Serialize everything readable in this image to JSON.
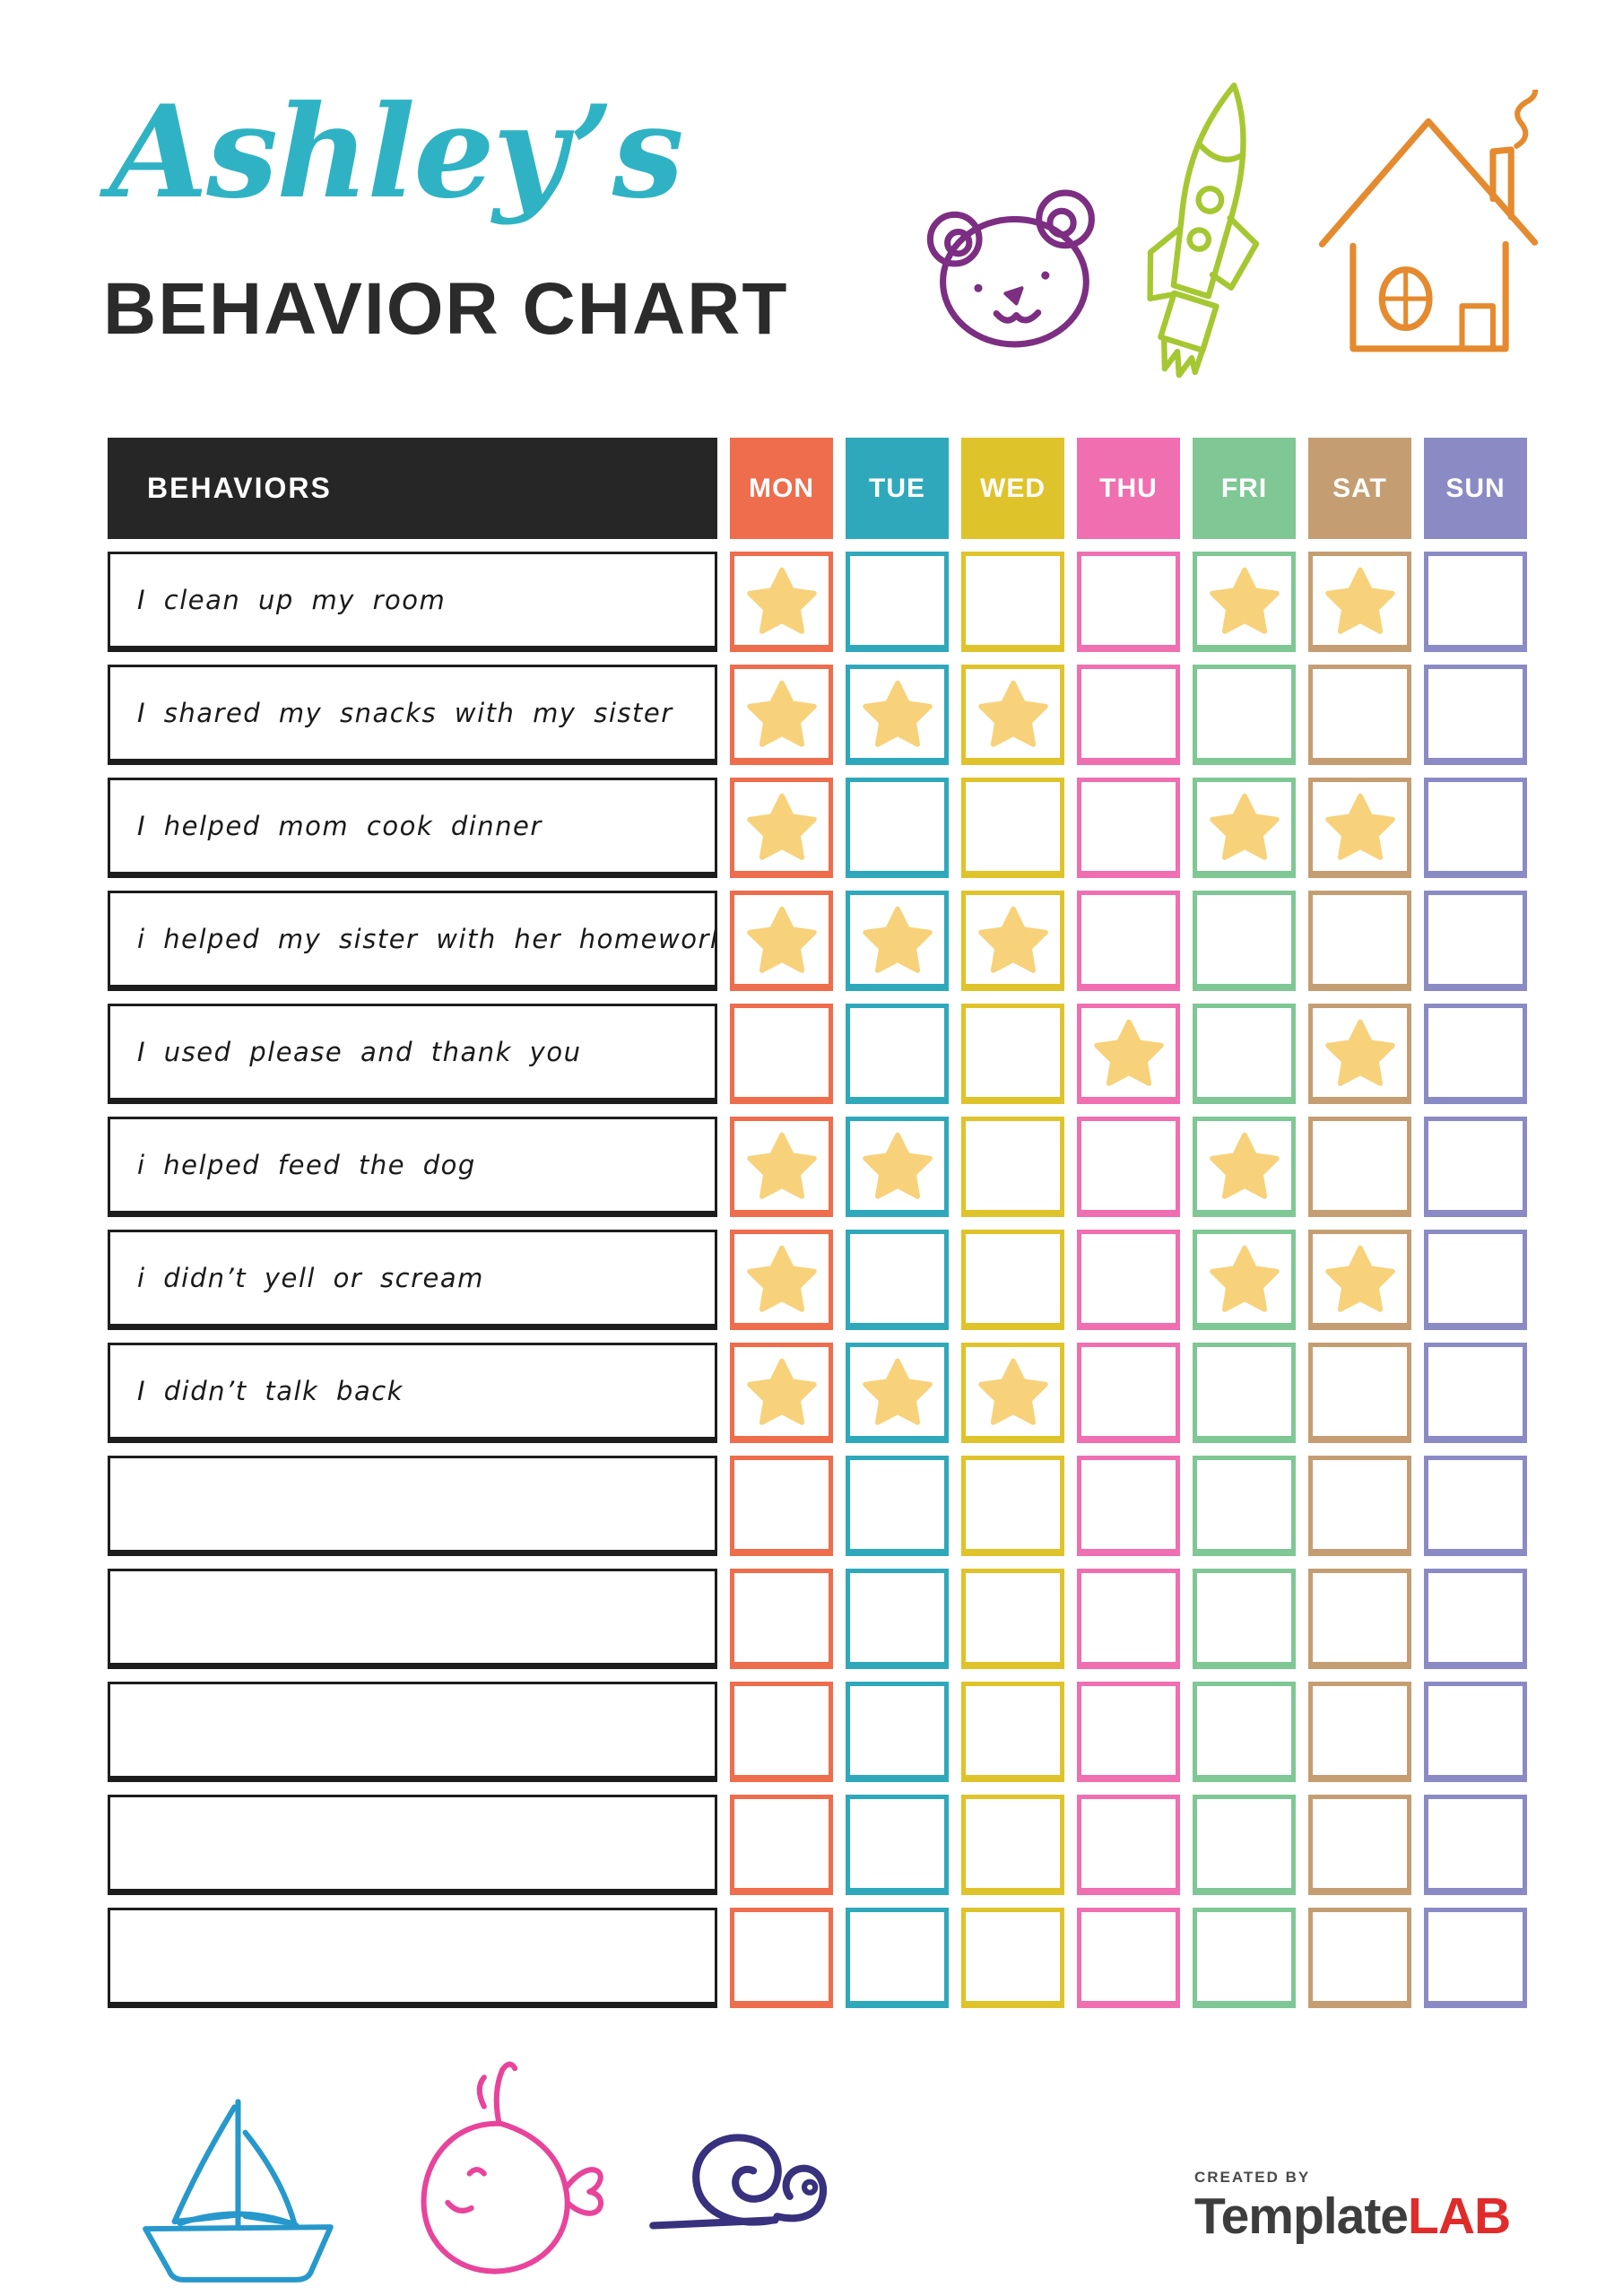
{
  "header": {
    "title": "Ashley’s",
    "subtitle": "BEHAVIOR CHART",
    "title_color": "#2FB3C4",
    "subtitle_color": "#2B2B2B"
  },
  "doodles": {
    "top": [
      "teddy-bear-icon",
      "rocket-icon",
      "house-icon"
    ],
    "bottom": [
      "sailboat-icon",
      "whale-icon",
      "snail-icon"
    ],
    "bear_color": "#7C2E82",
    "rocket_color": "#A5C832",
    "house_color": "#E58A2E",
    "sailboat_color": "#2798CC",
    "whale_color": "#E8449B",
    "snail_color": "#37317E"
  },
  "table": {
    "behaviors_header": "BEHAVIORS",
    "header_bg": "#262626",
    "star_color": "#F7D27A",
    "days": [
      {
        "label": "MON",
        "color": "#ED6D4D"
      },
      {
        "label": "TUE",
        "color": "#2FA8BC"
      },
      {
        "label": "WED",
        "color": "#DFC32B"
      },
      {
        "label": "THU",
        "color": "#EF6FB0"
      },
      {
        "label": "FRI",
        "color": "#7FC795"
      },
      {
        "label": "SAT",
        "color": "#C49E72"
      },
      {
        "label": "SUN",
        "color": "#8A8BC5"
      }
    ],
    "rows": [
      {
        "behavior": "I clean up my room",
        "stars": [
          "MON",
          "FRI",
          "SAT"
        ]
      },
      {
        "behavior": "I shared my snacks with my sister",
        "stars": [
          "MON",
          "TUE",
          "WED"
        ]
      },
      {
        "behavior": "I helped mom cook dinner",
        "stars": [
          "MON",
          "FRI",
          "SAT"
        ]
      },
      {
        "behavior": "i helped my sister with her homework",
        "stars": [
          "MON",
          "TUE",
          "WED"
        ]
      },
      {
        "behavior": "I used please and thank you",
        "stars": [
          "THU",
          "SAT"
        ]
      },
      {
        "behavior": "i helped feed the dog",
        "stars": [
          "MON",
          "TUE",
          "FRI"
        ]
      },
      {
        "behavior": "i didn’t yell or scream",
        "stars": [
          "MON",
          "FRI",
          "SAT"
        ]
      },
      {
        "behavior": "I didn’t talk back",
        "stars": [
          "MON",
          "TUE",
          "WED"
        ]
      },
      {
        "behavior": "",
        "stars": []
      },
      {
        "behavior": "",
        "stars": []
      },
      {
        "behavior": "",
        "stars": []
      },
      {
        "behavior": "",
        "stars": []
      },
      {
        "behavior": "",
        "stars": []
      }
    ]
  },
  "footer": {
    "created_by": "CREATED BY",
    "brand_first": "Template",
    "brand_second": "LAB",
    "brand_first_color": "#3D3D3D",
    "brand_second_color": "#E02B2B"
  }
}
